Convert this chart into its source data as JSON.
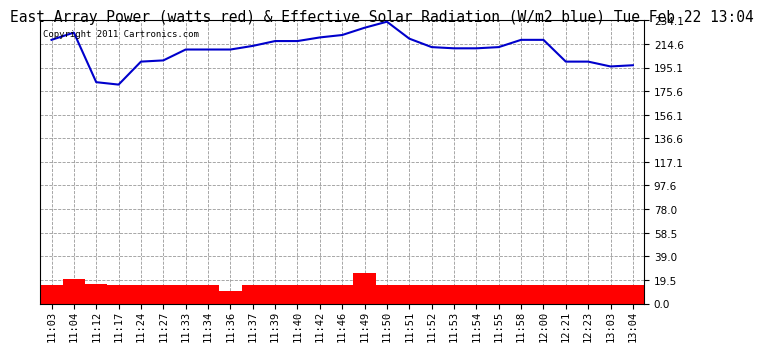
{
  "title": "East Array Power (watts red) & Effective Solar Radiation (W/m2 blue) Tue Feb 22 13:04",
  "copyright": "Copyright 2011 Cartronics.com",
  "x_labels": [
    "11:03",
    "11:04",
    "11:12",
    "11:17",
    "11:24",
    "11:27",
    "11:33",
    "11:34",
    "11:36",
    "11:37",
    "11:39",
    "11:40",
    "11:42",
    "11:46",
    "11:49",
    "11:50",
    "11:51",
    "11:52",
    "11:53",
    "11:54",
    "11:55",
    "11:58",
    "12:00",
    "12:21",
    "12:23",
    "13:03",
    "13:04"
  ],
  "blue_values": [
    218,
    224,
    183,
    181,
    200,
    201,
    210,
    210,
    210,
    213,
    217,
    217,
    220,
    222,
    228,
    233,
    219,
    212,
    211,
    211,
    212,
    218,
    218,
    200,
    200,
    196,
    197
  ],
  "red_values": [
    15,
    20,
    16,
    15,
    15,
    15,
    15,
    15,
    10,
    15,
    15,
    15,
    15,
    15,
    25,
    15,
    15,
    15,
    15,
    15,
    15,
    15,
    15,
    15,
    15,
    15,
    15
  ],
  "y_ticks": [
    0.0,
    19.5,
    39.0,
    58.5,
    78.0,
    97.6,
    117.1,
    136.6,
    156.1,
    175.6,
    195.1,
    214.6,
    234.1
  ],
  "y_min": 0.0,
  "y_max": 234.1,
  "blue_color": "#0000cc",
  "red_color": "#ff0000",
  "background_color": "#ffffff",
  "grid_color": "#999999",
  "title_fontsize": 10.5,
  "copyright_fontsize": 6.5,
  "tick_fontsize": 7.5
}
